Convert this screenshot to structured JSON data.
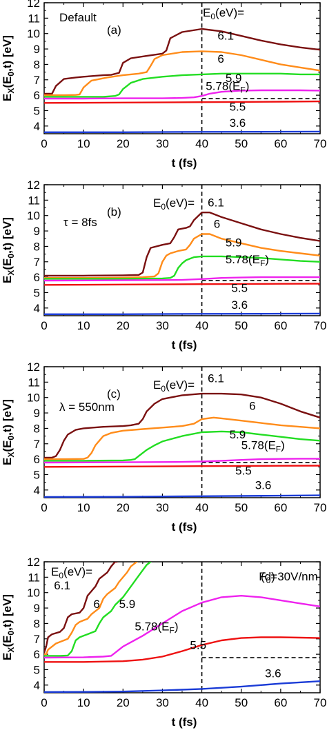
{
  "figure": {
    "xlabel": "t (fs)",
    "ylabel_parts": {
      "main": "E",
      "sub1": "X",
      "mid": "(E",
      "sub2": "0",
      "end": ",t) [eV]"
    },
    "xticks": [
      0,
      10,
      20,
      30,
      40,
      50,
      60,
      70
    ],
    "yticks": [
      4,
      5,
      6,
      7,
      8,
      9,
      10,
      11,
      12
    ],
    "colors": {
      "6.1": "#7a1010",
      "6": "#ff8c1a",
      "5.9": "#22dd22",
      "5.78(EF)": "#ee22ee",
      "5.5": "#ee1111",
      "3.6": "#1a3bd6",
      "reference": "#000000"
    }
  },
  "chart_data": [
    {
      "type": "line",
      "panel_label": "(a)",
      "annotation": "Default",
      "legend_header": "E0(eV)=",
      "xlim": [
        0,
        70
      ],
      "ylim": [
        3.5,
        12
      ],
      "vline_x": 40,
      "hline_y": 5.78,
      "series": [
        {
          "name": "6.1",
          "x": [
            0,
            2,
            3,
            5,
            8,
            10,
            15,
            17,
            19,
            20,
            22,
            26,
            30,
            31,
            32,
            35,
            40,
            45,
            50,
            55,
            60,
            65,
            70
          ],
          "y": [
            6.1,
            6.1,
            6.6,
            7.05,
            7.15,
            7.2,
            7.3,
            7.32,
            7.45,
            8.1,
            8.4,
            8.55,
            8.7,
            8.9,
            9.7,
            10.1,
            10.3,
            10.15,
            9.85,
            9.55,
            9.3,
            9.1,
            8.95
          ]
        },
        {
          "name": "6",
          "x": [
            0,
            5,
            8,
            9,
            10,
            12,
            16,
            20,
            24,
            26,
            27,
            28,
            30,
            35,
            40,
            45,
            50,
            55,
            60,
            65,
            70
          ],
          "y": [
            6.0,
            6.0,
            6.02,
            6.05,
            6.5,
            6.95,
            7.15,
            7.3,
            7.4,
            7.5,
            7.9,
            8.35,
            8.6,
            8.8,
            8.85,
            8.8,
            8.6,
            8.3,
            8.0,
            7.8,
            7.6
          ]
        },
        {
          "name": "5.9",
          "x": [
            0,
            10,
            15,
            18,
            19,
            20,
            22,
            25,
            30,
            35,
            40,
            45,
            50,
            55,
            60,
            65,
            70
          ],
          "y": [
            5.9,
            5.9,
            5.9,
            5.95,
            6.05,
            6.4,
            6.8,
            7.05,
            7.2,
            7.3,
            7.35,
            7.4,
            7.4,
            7.4,
            7.4,
            7.35,
            7.35
          ]
        },
        {
          "name": "5.78(EF)",
          "x": [
            0,
            10,
            20,
            30,
            35,
            38,
            40,
            42,
            45,
            50,
            55,
            60,
            65,
            70
          ],
          "y": [
            5.78,
            5.78,
            5.8,
            5.8,
            5.82,
            5.86,
            5.95,
            6.1,
            6.22,
            6.3,
            6.32,
            6.32,
            6.32,
            6.3
          ]
        },
        {
          "name": "5.5",
          "x": [
            0,
            20,
            40,
            60,
            70
          ],
          "y": [
            5.5,
            5.52,
            5.55,
            5.58,
            5.6
          ]
        },
        {
          "name": "3.6",
          "x": [
            0,
            20,
            40,
            60,
            70
          ],
          "y": [
            3.6,
            3.6,
            3.62,
            3.63,
            3.64
          ]
        }
      ],
      "labels": [
        {
          "text": "6.1",
          "x": 44,
          "y": 9.6
        },
        {
          "text": "6",
          "x": 44,
          "y": 8.1
        },
        {
          "text": "5.9",
          "x": 46,
          "y": 6.85
        },
        {
          "text": "5.78(E",
          "sub": "F",
          "tail": ")",
          "x": 41,
          "y": 6.35
        },
        {
          "text": "5.5",
          "x": 47,
          "y": 5.0
        },
        {
          "text": "3.6",
          "x": 47,
          "y": 3.95
        }
      ]
    },
    {
      "type": "line",
      "panel_label": "(b)",
      "annotation": "τ = 8fs",
      "legend_header": "E0(eV)=",
      "xlim": [
        0,
        70
      ],
      "ylim": [
        3.5,
        12
      ],
      "vline_x": 40,
      "hline_y": 5.78,
      "series": [
        {
          "name": "6.1",
          "x": [
            0,
            10,
            20,
            24,
            25,
            26,
            27,
            30,
            32,
            33,
            34,
            36,
            37,
            38,
            40,
            42,
            45,
            50,
            55,
            60,
            65,
            70
          ],
          "y": [
            6.1,
            6.1,
            6.12,
            6.15,
            6.3,
            7.3,
            7.9,
            8.1,
            8.2,
            8.6,
            9.1,
            9.2,
            9.3,
            9.7,
            10.2,
            10.2,
            9.9,
            9.5,
            9.1,
            8.8,
            8.55,
            8.35
          ]
        },
        {
          "name": "6",
          "x": [
            0,
            10,
            20,
            25,
            28,
            29,
            30,
            31,
            32,
            34,
            36,
            37,
            38,
            40,
            42,
            45,
            50,
            55,
            60,
            65,
            70
          ],
          "y": [
            5.95,
            5.95,
            5.97,
            6.0,
            6.05,
            6.25,
            7.0,
            7.4,
            7.55,
            7.7,
            7.8,
            8.1,
            8.5,
            8.8,
            8.8,
            8.5,
            8.2,
            7.9,
            7.7,
            7.55,
            7.4
          ]
        },
        {
          "name": "5.9",
          "x": [
            0,
            10,
            20,
            30,
            32,
            33,
            34,
            35,
            36,
            37,
            38,
            40,
            45,
            50,
            55,
            60,
            65,
            70
          ],
          "y": [
            5.9,
            5.9,
            5.9,
            5.92,
            5.95,
            6.1,
            6.6,
            6.9,
            7.1,
            7.2,
            7.3,
            7.35,
            7.35,
            7.3,
            7.25,
            7.15,
            7.05,
            7.0
          ]
        },
        {
          "name": "5.78(EF)",
          "x": [
            0,
            20,
            35,
            40,
            45,
            50,
            55,
            60,
            65,
            70
          ],
          "y": [
            5.78,
            5.8,
            5.82,
            5.88,
            5.95,
            5.98,
            6.0,
            6.0,
            6.0,
            6.0
          ]
        },
        {
          "name": "5.5",
          "x": [
            0,
            20,
            40,
            60,
            70
          ],
          "y": [
            5.5,
            5.52,
            5.55,
            5.57,
            5.58
          ]
        },
        {
          "name": "3.6",
          "x": [
            0,
            20,
            40,
            60,
            70
          ],
          "y": [
            3.6,
            3.6,
            3.62,
            3.63,
            3.64
          ]
        }
      ],
      "labels": [
        {
          "text": "6.1",
          "x": 41.5,
          "y": 10.6
        },
        {
          "text": "6",
          "x": 43,
          "y": 9.2
        },
        {
          "text": "5.9",
          "x": 46,
          "y": 8.0
        },
        {
          "text": "5.78(E",
          "sub": "F",
          "tail": ")",
          "x": 46,
          "y": 6.9
        },
        {
          "text": "5.5",
          "x": 47.5,
          "y": 5.05
        },
        {
          "text": "3.6",
          "x": 47.5,
          "y": 3.95
        }
      ]
    },
    {
      "type": "line",
      "panel_label": "(c)",
      "annotation": "λ = 550nm",
      "legend_header": "E0(eV)=",
      "xlim": [
        0,
        70
      ],
      "ylim": [
        3.5,
        12
      ],
      "vline_x": 40,
      "hline_y": 5.78,
      "series": [
        {
          "name": "6.1",
          "x": [
            0,
            2,
            3,
            4,
            5,
            6,
            8,
            10,
            15,
            20,
            22,
            24,
            25,
            26,
            28,
            30,
            35,
            40,
            45,
            50,
            55,
            60,
            65,
            70
          ],
          "y": [
            6.1,
            6.1,
            6.2,
            6.6,
            7.2,
            7.6,
            7.9,
            8.0,
            8.1,
            8.15,
            8.2,
            8.3,
            8.6,
            9.1,
            9.6,
            9.9,
            10.15,
            10.25,
            10.25,
            10.2,
            10.0,
            9.6,
            9.1,
            8.7
          ]
        },
        {
          "name": "6",
          "x": [
            0,
            5,
            10,
            11,
            12,
            13,
            14,
            15,
            17,
            20,
            25,
            30,
            35,
            38,
            40,
            43,
            45,
            50,
            55,
            60,
            65,
            70
          ],
          "y": [
            6.0,
            6.0,
            6.02,
            6.1,
            6.4,
            6.9,
            7.2,
            7.5,
            7.7,
            7.85,
            7.95,
            8.05,
            8.15,
            8.3,
            8.6,
            8.7,
            8.65,
            8.5,
            8.35,
            8.2,
            8.1,
            8.0
          ]
        },
        {
          "name": "5.9",
          "x": [
            0,
            10,
            20,
            22,
            23,
            24,
            26,
            28,
            30,
            35,
            40,
            45,
            50,
            55,
            60,
            65,
            70
          ],
          "y": [
            5.9,
            5.9,
            5.92,
            5.95,
            6.0,
            6.2,
            6.6,
            6.9,
            7.15,
            7.5,
            7.75,
            7.8,
            7.75,
            7.6,
            7.45,
            7.3,
            7.2
          ]
        },
        {
          "name": "5.78(EF)",
          "x": [
            0,
            20,
            35,
            40,
            45,
            50,
            55,
            60,
            65,
            70
          ],
          "y": [
            5.78,
            5.8,
            5.82,
            5.85,
            5.9,
            5.95,
            6.0,
            6.02,
            6.03,
            6.03
          ]
        },
        {
          "name": "5.5",
          "x": [
            0,
            20,
            40,
            60,
            70
          ],
          "y": [
            5.5,
            5.52,
            5.55,
            5.57,
            5.58
          ]
        },
        {
          "name": "3.6",
          "x": [
            0,
            20,
            40,
            60,
            70
          ],
          "y": [
            3.55,
            3.56,
            3.6,
            3.63,
            3.65
          ]
        }
      ],
      "labels": [
        {
          "text": "6.1",
          "x": 41.5,
          "y": 11.0
        },
        {
          "text": "6",
          "x": 52,
          "y": 9.2
        },
        {
          "text": "5.9",
          "x": 47,
          "y": 7.35
        },
        {
          "text": "5.78(E",
          "sub": "F",
          "tail": ")",
          "x": 50,
          "y": 6.65
        },
        {
          "text": "5.5",
          "x": 48.5,
          "y": 5.0
        },
        {
          "text": "3.6",
          "x": 53.5,
          "y": 4.05
        }
      ]
    },
    {
      "type": "line",
      "panel_label": "(d)",
      "annotation": "F0=30V/nm",
      "legend_header": "E0(eV)=",
      "xlim": [
        0,
        70
      ],
      "ylim": [
        3.5,
        12
      ],
      "vline_x": 40,
      "hline_y": 5.78,
      "series": [
        {
          "name": "6.1",
          "x": [
            0,
            0.5,
            1,
            2,
            4,
            5,
            6,
            7,
            9,
            10,
            11,
            12,
            13,
            14,
            16,
            17,
            18,
            18.5
          ],
          "y": [
            6.1,
            6.5,
            7.1,
            7.3,
            7.45,
            7.7,
            8.4,
            8.6,
            8.7,
            9.0,
            9.8,
            10.1,
            10.4,
            10.9,
            11.3,
            11.7,
            12.0,
            12.0
          ]
        },
        {
          "name": "6",
          "x": [
            0,
            0.5,
            1,
            3,
            5,
            6,
            7,
            8,
            9,
            10,
            11,
            12,
            14,
            15,
            16,
            17,
            18,
            19,
            20,
            21,
            22,
            23,
            23.5
          ],
          "y": [
            6.0,
            6.0,
            6.3,
            6.7,
            6.9,
            7.0,
            7.4,
            7.9,
            8.1,
            8.2,
            8.3,
            8.6,
            9.0,
            9.6,
            9.9,
            10.1,
            10.3,
            10.7,
            11.0,
            11.3,
            11.7,
            11.9,
            12.0
          ]
        },
        {
          "name": "5.9",
          "x": [
            0,
            2,
            4,
            6,
            7,
            8,
            9,
            10,
            11,
            13,
            14,
            15,
            16,
            17,
            18,
            20,
            22,
            24,
            26,
            27
          ],
          "y": [
            5.9,
            5.9,
            5.9,
            5.92,
            6.2,
            6.9,
            7.1,
            7.2,
            7.3,
            7.5,
            8.0,
            8.4,
            8.6,
            8.8,
            9.2,
            9.7,
            10.4,
            11.1,
            11.8,
            12.0
          ]
        },
        {
          "name": "5.78(EF)",
          "x": [
            0,
            10,
            15,
            17,
            18,
            20,
            25,
            30,
            35,
            40,
            45,
            50,
            55,
            60,
            65,
            70
          ],
          "y": [
            5.78,
            5.8,
            5.85,
            5.9,
            6.1,
            6.5,
            7.2,
            8.0,
            8.8,
            9.35,
            9.7,
            9.8,
            9.7,
            9.5,
            9.3,
            9.1
          ]
        },
        {
          "name": "5.5",
          "x": [
            0,
            10,
            20,
            25,
            30,
            35,
            40,
            45,
            50,
            55,
            60,
            65,
            70
          ],
          "y": [
            5.5,
            5.5,
            5.55,
            5.65,
            5.85,
            6.2,
            6.6,
            6.9,
            7.05,
            7.1,
            7.1,
            7.08,
            7.05
          ]
        },
        {
          "name": "3.6",
          "x": [
            0,
            10,
            20,
            30,
            40,
            50,
            60,
            70
          ],
          "y": [
            3.55,
            3.56,
            3.58,
            3.65,
            3.75,
            3.9,
            4.1,
            4.25
          ]
        }
      ],
      "labels": [
        {
          "text": "6.1",
          "x": 2.5,
          "y": 10.2
        },
        {
          "text": "6",
          "x": 12.5,
          "y": 9.0
        },
        {
          "text": "5.9",
          "x": 19,
          "y": 9.0
        },
        {
          "text": "5.78(E",
          "sub": "F",
          "tail": ")",
          "x": 23,
          "y": 7.55
        },
        {
          "text": "5.5",
          "x": 37,
          "y": 6.35
        },
        {
          "text": "3.6",
          "x": 56,
          "y": 4.5
        }
      ]
    }
  ]
}
